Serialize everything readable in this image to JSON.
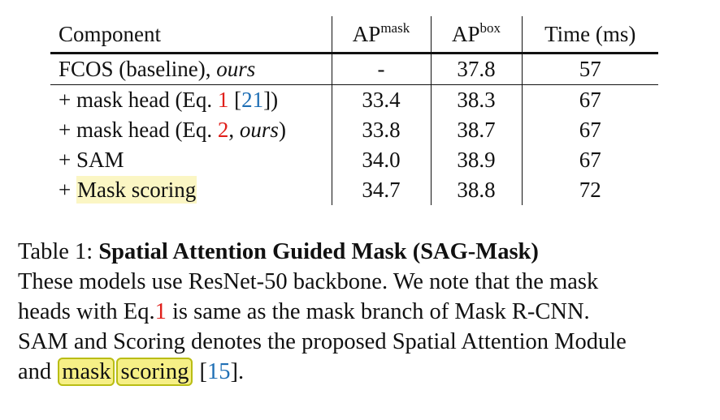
{
  "table": {
    "headers": {
      "component": "Component",
      "ap_mask_base": "AP",
      "ap_mask_sup": "mask",
      "ap_box_base": "AP",
      "ap_box_sup": "box",
      "time": "Time (ms)"
    },
    "rows": [
      {
        "prefix": "FCOS (baseline), ",
        "italic": "ours",
        "ap_mask": "-",
        "ap_box": "37.8",
        "time": "57"
      },
      {
        "prefix": "+ mask head (Eq. ",
        "ref1": "1",
        "mid": " [",
        "ref2": "21",
        "suffix": "])",
        "ap_mask": "33.4",
        "ap_box": "38.3",
        "time": "67"
      },
      {
        "prefix": "+ mask head (Eq. ",
        "ref1": "2",
        "mid": ", ",
        "italic": "ours",
        "suffix": ")",
        "ap_mask": "33.8",
        "ap_box": "38.7",
        "time": "67"
      },
      {
        "label": "+ SAM",
        "ap_mask": "34.0",
        "ap_box": "38.9",
        "time": "67"
      },
      {
        "prefix": "+ ",
        "highlight": "Mask scoring",
        "ap_mask": "34.7",
        "ap_box": "38.8",
        "time": "72"
      }
    ]
  },
  "caption": {
    "label": "Table 1: ",
    "title": "Spatial Attention Guided Mask (SAG-Mask)",
    "line2": "These models use ResNet-50 backbone.  We note that the mask",
    "line3_a": "heads with Eq.",
    "line3_ref": "1",
    "line3_b": " is same as the mask branch of Mask R-CNN.",
    "line4": "SAM and Scoring denotes the proposed Spatial Attention Module",
    "line5_a": "and ",
    "word1": "mask",
    "word2": "scoring",
    "line5_b": " [",
    "line5_ref": "15",
    "line5_c": "]."
  },
  "colors": {
    "reference_red": "#e0201b",
    "citation_blue": "#1f6fb5",
    "highlight_fill": "#f6ef86",
    "highlight_border": "#b9bd15"
  }
}
